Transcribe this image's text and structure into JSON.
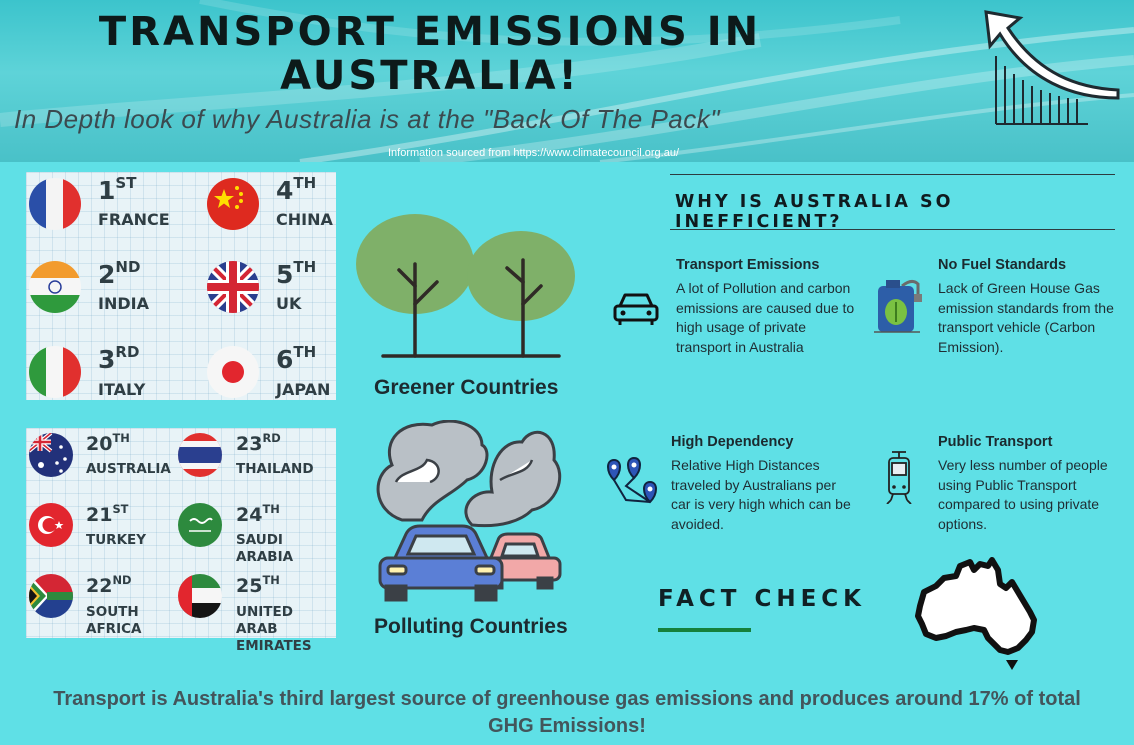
{
  "header": {
    "title": "TRANSPORT EMISSIONS IN AUSTRALIA!",
    "subtitle": "In Depth look of why Australia is at the \"Back Of The Pack\"",
    "source": "Information sourced from https://www.climatecouncil.org.au/"
  },
  "greener": {
    "label": "Greener Countries",
    "countries": [
      {
        "rank": "1",
        "suffix": "ST",
        "name": "FRANCE"
      },
      {
        "rank": "4",
        "suffix": "TH",
        "name": "CHINA"
      },
      {
        "rank": "2",
        "suffix": "ND",
        "name": "INDIA"
      },
      {
        "rank": "5",
        "suffix": "TH",
        "name": "UK"
      },
      {
        "rank": "3",
        "suffix": "RD",
        "name": "ITALY"
      },
      {
        "rank": "6",
        "suffix": "TH",
        "name": "JAPAN"
      }
    ]
  },
  "polluting": {
    "label": "Polluting Countries",
    "countries": [
      {
        "rank": "20",
        "suffix": "TH",
        "name": "AUSTRALIA"
      },
      {
        "rank": "23",
        "suffix": "RD",
        "name": "THAILAND"
      },
      {
        "rank": "21",
        "suffix": "ST",
        "name": "TURKEY"
      },
      {
        "rank": "24",
        "suffix": "TH",
        "name": "SAUDI ARABIA"
      },
      {
        "rank": "22",
        "suffix": "ND",
        "name": "SOUTH AFRICA"
      },
      {
        "rank": "25",
        "suffix": "TH",
        "name": "UNITED ARAB EMIRATES"
      }
    ]
  },
  "why": {
    "heading": "WHY IS AUSTRALIA SO INEFFICIENT?",
    "cards": [
      {
        "title": "Transport Emissions",
        "text": "A lot of Pollution and carbon emissions are caused due to high usage of private transport in Australia",
        "icon": "car-icon"
      },
      {
        "title": "No Fuel Standards",
        "text": "Lack of Green House Gas emission standards from the transport vehicle (Carbon Emission).",
        "icon": "fuel-can-icon"
      },
      {
        "title": "High Dependency",
        "text": "Relative High Distances traveled by Australians per car is very high which can be avoided.",
        "icon": "route-pins-icon"
      },
      {
        "title": "Public Transport",
        "text": "Very less number of people using Public Transport compared to using private options.",
        "icon": "tram-icon"
      }
    ]
  },
  "fact_check": {
    "heading": "FACT CHECK"
  },
  "footer": {
    "text": "Transport is Australia's  third largest source of greenhouse gas emissions and produces around 17% of total GHG Emissions!"
  },
  "colors": {
    "background": "#5fe0e6",
    "tree": "#7fb069",
    "accent_line": "#16803c"
  }
}
